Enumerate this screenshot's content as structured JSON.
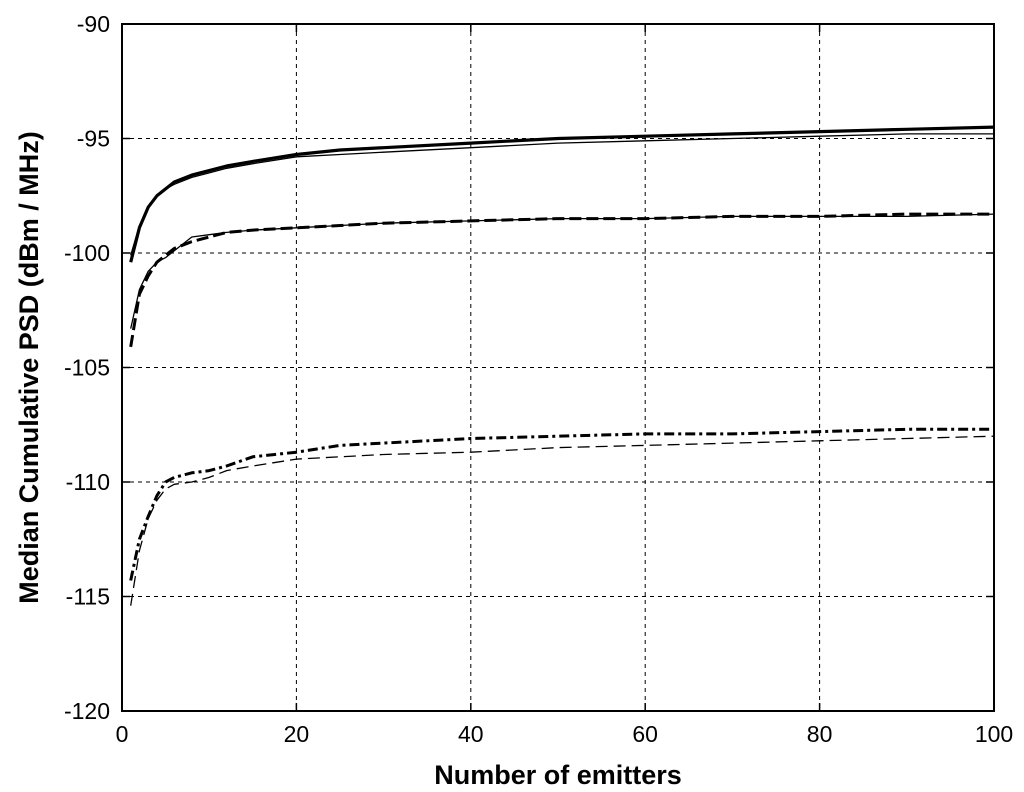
{
  "chart_data": {
    "type": "line",
    "title": "",
    "xlabel": "Number of emitters",
    "ylabel": "Median Cumulative PSD (dBm / MHz)",
    "xlim": [
      0,
      100
    ],
    "ylim": [
      -120,
      -90
    ],
    "xticks": [
      0,
      20,
      40,
      60,
      80,
      100
    ],
    "yticks": [
      -90,
      -95,
      -100,
      -105,
      -110,
      -115,
      -120
    ],
    "grid": true,
    "legend": "none",
    "series": [
      {
        "style": "solid-thick",
        "x": [
          1,
          2,
          3,
          4,
          5,
          6,
          8,
          10,
          12,
          15,
          20,
          25,
          30,
          40,
          50,
          60,
          70,
          80,
          90,
          100
        ],
        "y": [
          -100.4,
          -98.9,
          -98.0,
          -97.5,
          -97.2,
          -96.9,
          -96.6,
          -96.4,
          -96.2,
          -96.0,
          -95.7,
          -95.5,
          -95.4,
          -95.2,
          -95.0,
          -94.9,
          -94.8,
          -94.7,
          -94.6,
          -94.5
        ]
      },
      {
        "style": "solid-thin",
        "x": [
          1,
          2,
          3,
          4,
          5,
          6,
          8,
          10,
          12,
          15,
          20,
          25,
          30,
          40,
          50,
          60,
          70,
          80,
          90,
          100
        ],
        "y": [
          -100.1,
          -98.8,
          -98.0,
          -97.5,
          -97.2,
          -97.0,
          -96.7,
          -96.5,
          -96.3,
          -96.1,
          -95.8,
          -95.7,
          -95.6,
          -95.4,
          -95.2,
          -95.1,
          -95.0,
          -94.9,
          -94.8,
          -94.8
        ]
      },
      {
        "style": "dashed-thick",
        "x": [
          1,
          2,
          3,
          4,
          5,
          6,
          8,
          10,
          12,
          15,
          20,
          25,
          30,
          40,
          50,
          60,
          70,
          80,
          90,
          100
        ],
        "y": [
          -104.1,
          -101.8,
          -101.0,
          -100.4,
          -100.1,
          -99.8,
          -99.5,
          -99.3,
          -99.1,
          -99.0,
          -98.9,
          -98.8,
          -98.7,
          -98.6,
          -98.5,
          -98.5,
          -98.4,
          -98.4,
          -98.3,
          -98.3
        ]
      },
      {
        "style": "solid-thin",
        "x": [
          1,
          2,
          3,
          4,
          5,
          6,
          8,
          10,
          12,
          15,
          20,
          25,
          30,
          40,
          50,
          60,
          70,
          80,
          90,
          100
        ],
        "y": [
          -103.3,
          -101.6,
          -100.8,
          -100.4,
          -100.2,
          -99.9,
          -99.3,
          -99.2,
          -99.1,
          -99.0,
          -98.9,
          -98.8,
          -98.7,
          -98.6,
          -98.5,
          -98.5,
          -98.4,
          -98.4,
          -98.4,
          -98.3
        ]
      },
      {
        "style": "dashdot-thick",
        "x": [
          1,
          2,
          3,
          4,
          5,
          6,
          8,
          10,
          12,
          15,
          20,
          25,
          30,
          40,
          50,
          60,
          70,
          80,
          90,
          100
        ],
        "y": [
          -114.3,
          -112.5,
          -111.5,
          -110.6,
          -110.0,
          -109.8,
          -109.6,
          -109.5,
          -109.3,
          -108.9,
          -108.7,
          -108.4,
          -108.3,
          -108.1,
          -108.0,
          -107.9,
          -107.9,
          -107.8,
          -107.7,
          -107.7
        ]
      },
      {
        "style": "dashed-thin",
        "x": [
          1,
          2,
          3,
          4,
          5,
          6,
          8,
          10,
          12,
          15,
          20,
          25,
          30,
          40,
          50,
          60,
          70,
          80,
          90,
          100
        ],
        "y": [
          -115.4,
          -113.0,
          -111.6,
          -110.8,
          -110.3,
          -110.1,
          -110.0,
          -109.8,
          -109.5,
          -109.3,
          -109.0,
          -108.9,
          -108.8,
          -108.7,
          -108.5,
          -108.4,
          -108.3,
          -108.2,
          -108.1,
          -108.0
        ]
      }
    ]
  }
}
